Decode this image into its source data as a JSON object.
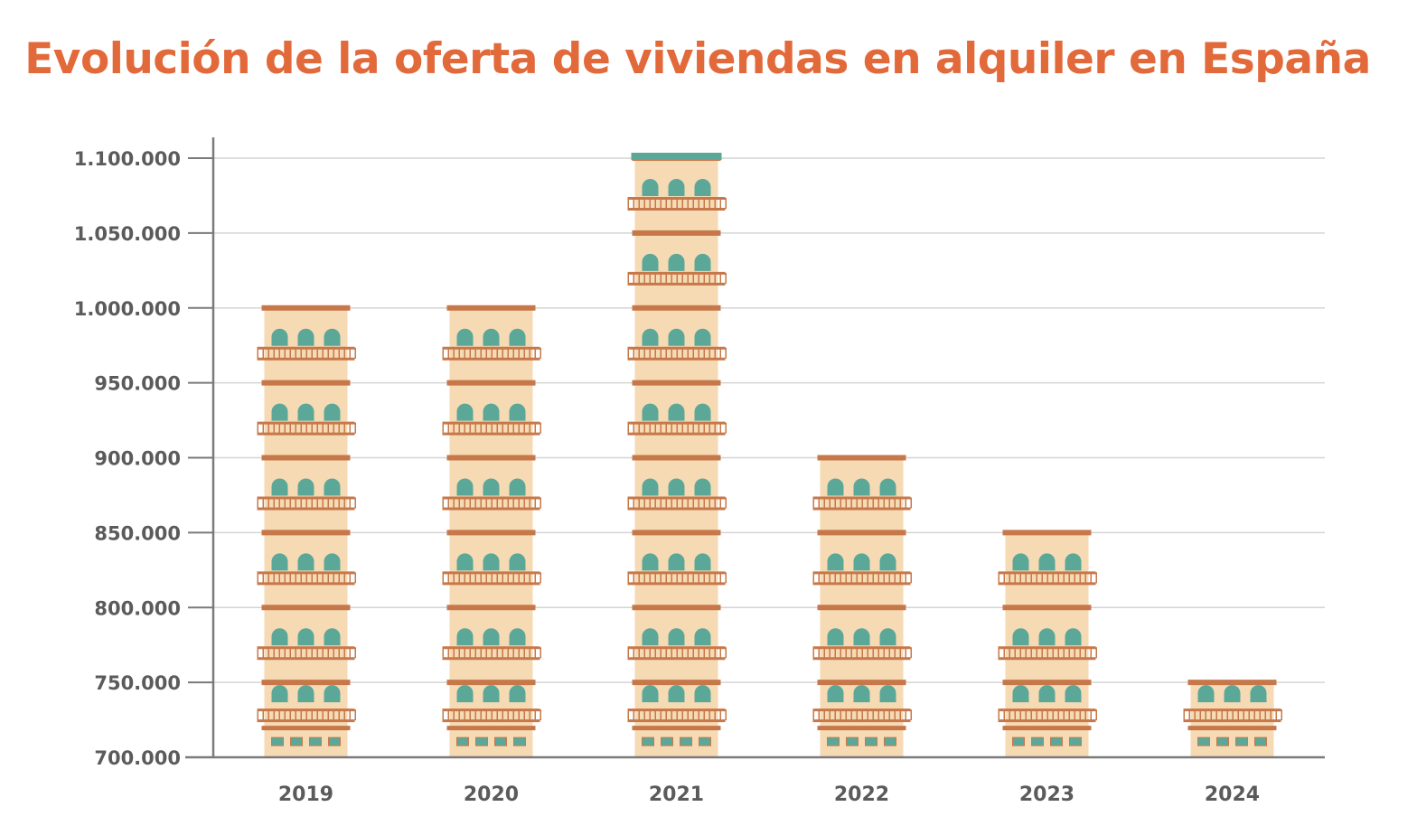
{
  "chart_data": {
    "type": "bar",
    "title": "Evolución de la oferta de viviendas en alquiler en España",
    "xlabel": "",
    "ylabel": "",
    "categories": [
      "2019",
      "2020",
      "2021",
      "2022",
      "2023",
      "2024"
    ],
    "values": [
      1000000,
      1000000,
      1100000,
      900000,
      850000,
      750000
    ],
    "ylim": [
      700000,
      1100000
    ],
    "yticks": [
      700000,
      750000,
      800000,
      850000,
      900000,
      950000,
      1000000,
      1050000,
      1100000
    ],
    "ytick_labels": [
      "700.000",
      "750.000",
      "800.000",
      "850.000",
      "900.000",
      "950.000",
      "1.000.000",
      "1.050.000",
      "1.100.000"
    ],
    "grid": true,
    "legend": "none"
  },
  "colors": {
    "title": "#e2693a",
    "building_wall": "#f6dab4",
    "floor_trim": "#c7784a",
    "window": "#5ba899",
    "roof_top": "#5ba899",
    "gridline": "#d4d4d4",
    "axis": "#7a7a7a",
    "label": "#5b5b5b"
  }
}
